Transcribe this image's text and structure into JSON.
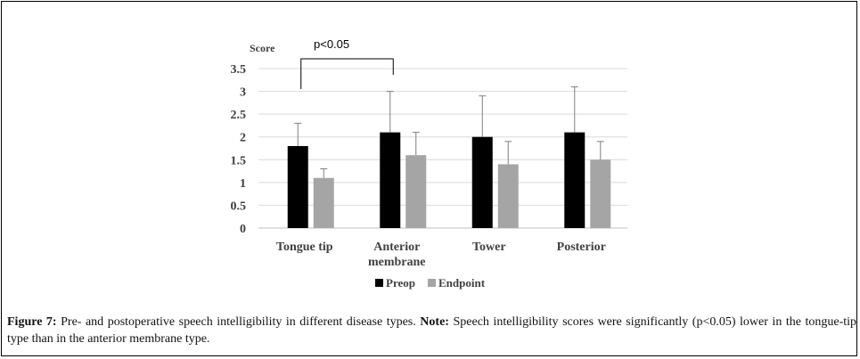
{
  "chart_data": {
    "type": "bar",
    "ylabel": "Score",
    "ylim": [
      0,
      3.5
    ],
    "y_ticks": [
      "0",
      "0.5",
      "1",
      "1.5",
      "2",
      "2.5",
      "3",
      "3.5"
    ],
    "categories": [
      {
        "line1": "Tongue tip",
        "line2": ""
      },
      {
        "line1": "Anterior",
        "line2": "membrane"
      },
      {
        "line1": "Tower",
        "line2": ""
      },
      {
        "line1": "Posterior",
        "line2": ""
      }
    ],
    "series": [
      {
        "name": "Preop",
        "color": "#000000",
        "values": [
          1.8,
          2.1,
          2.0,
          2.1
        ],
        "errors": [
          0.5,
          0.9,
          0.9,
          1.0
        ]
      },
      {
        "name": "Endpoint",
        "color": "#a5a5a5",
        "values": [
          1.1,
          1.6,
          1.4,
          1.5
        ],
        "errors": [
          0.2,
          0.5,
          0.5,
          0.4
        ]
      }
    ],
    "annotation": {
      "text": "p<0.05",
      "from_category": 0,
      "to_category": 1
    },
    "grid": true,
    "legend_position": "bottom"
  },
  "caption": {
    "label": "Figure 7:",
    "text": "Pre- and postoperative speech intelligibility in different disease types.",
    "note_label": "Note:",
    "note_text": "Speech intelligibility scores were significantly (p<0.05) lower in the tongue-tip type than in the anterior membrane type."
  }
}
